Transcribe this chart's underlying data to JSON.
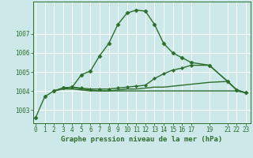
{
  "title": "Graphe pression niveau de la mer (hPa)",
  "bg_color": "#cce8e8",
  "grid_color": "#ffffff",
  "line_color": "#2d6e2d",
  "series": [
    {
      "x": [
        0,
        1,
        2,
        3,
        4,
        5,
        6,
        7,
        8,
        9,
        10,
        11,
        12,
        13,
        14,
        15,
        16,
        17,
        19,
        21,
        22,
        23
      ],
      "y": [
        1002.6,
        1003.7,
        1004.0,
        1004.15,
        1004.2,
        1004.85,
        1005.05,
        1005.85,
        1006.5,
        1007.5,
        1008.1,
        1008.25,
        1008.2,
        1007.5,
        1006.5,
        1006.0,
        1005.75,
        1005.5,
        1005.35,
        1004.5,
        1004.05,
        1003.9
      ],
      "marker": "D",
      "markersize": 2.5,
      "lw": 1.0
    },
    {
      "x": [
        2,
        3,
        4,
        5,
        6,
        7,
        8,
        9,
        10,
        11,
        12,
        13,
        14,
        15,
        16,
        17,
        19,
        21,
        22,
        23
      ],
      "y": [
        1004.0,
        1004.15,
        1004.2,
        1004.15,
        1004.1,
        1004.1,
        1004.1,
        1004.15,
        1004.2,
        1004.25,
        1004.3,
        1004.65,
        1004.9,
        1005.1,
        1005.2,
        1005.35,
        1005.35,
        1004.5,
        1004.05,
        1003.9
      ],
      "marker": "D",
      "markersize": 2.0,
      "lw": 1.0
    },
    {
      "x": [
        2,
        3,
        4,
        5,
        6,
        7,
        8,
        9,
        10,
        11,
        12,
        13,
        14,
        15,
        16,
        17,
        19,
        21,
        22,
        23
      ],
      "y": [
        1004.0,
        1004.15,
        1004.2,
        1004.1,
        1004.05,
        1004.0,
        1004.0,
        1004.05,
        1004.1,
        1004.1,
        1004.15,
        1004.2,
        1004.2,
        1004.25,
        1004.3,
        1004.35,
        1004.45,
        1004.5,
        1004.05,
        1003.9
      ],
      "marker": null,
      "markersize": 0,
      "lw": 1.0
    },
    {
      "x": [
        2,
        3,
        4,
        5,
        6,
        7,
        8,
        9,
        10,
        11,
        12,
        13,
        14,
        15,
        16,
        17,
        19,
        21,
        22,
        23
      ],
      "y": [
        1004.0,
        1004.1,
        1004.1,
        1004.05,
        1004.0,
        1004.0,
        1004.0,
        1004.0,
        1004.0,
        1004.0,
        1004.0,
        1004.0,
        1004.0,
        1004.0,
        1004.0,
        1004.0,
        1004.0,
        1004.0,
        1004.0,
        1003.9
      ],
      "marker": null,
      "markersize": 0,
      "lw": 1.0
    }
  ],
  "xticks": [
    0,
    1,
    2,
    3,
    4,
    5,
    6,
    7,
    8,
    9,
    10,
    11,
    12,
    13,
    14,
    15,
    16,
    17,
    19,
    21,
    22,
    23
  ],
  "xtick_labels": [
    "0",
    "1",
    "2",
    "3",
    "4",
    "5",
    "6",
    "7",
    "8",
    "9",
    "10",
    "11",
    "12",
    "13",
    "14",
    "15",
    "16",
    "17",
    "19",
    "21",
    "22",
    "23"
  ],
  "yticks": [
    1003,
    1004,
    1005,
    1006,
    1007
  ],
  "xlim": [
    -0.3,
    23.5
  ],
  "ylim": [
    1002.3,
    1008.7
  ],
  "title_fontsize": 6.5,
  "tick_fontsize": 5.5
}
